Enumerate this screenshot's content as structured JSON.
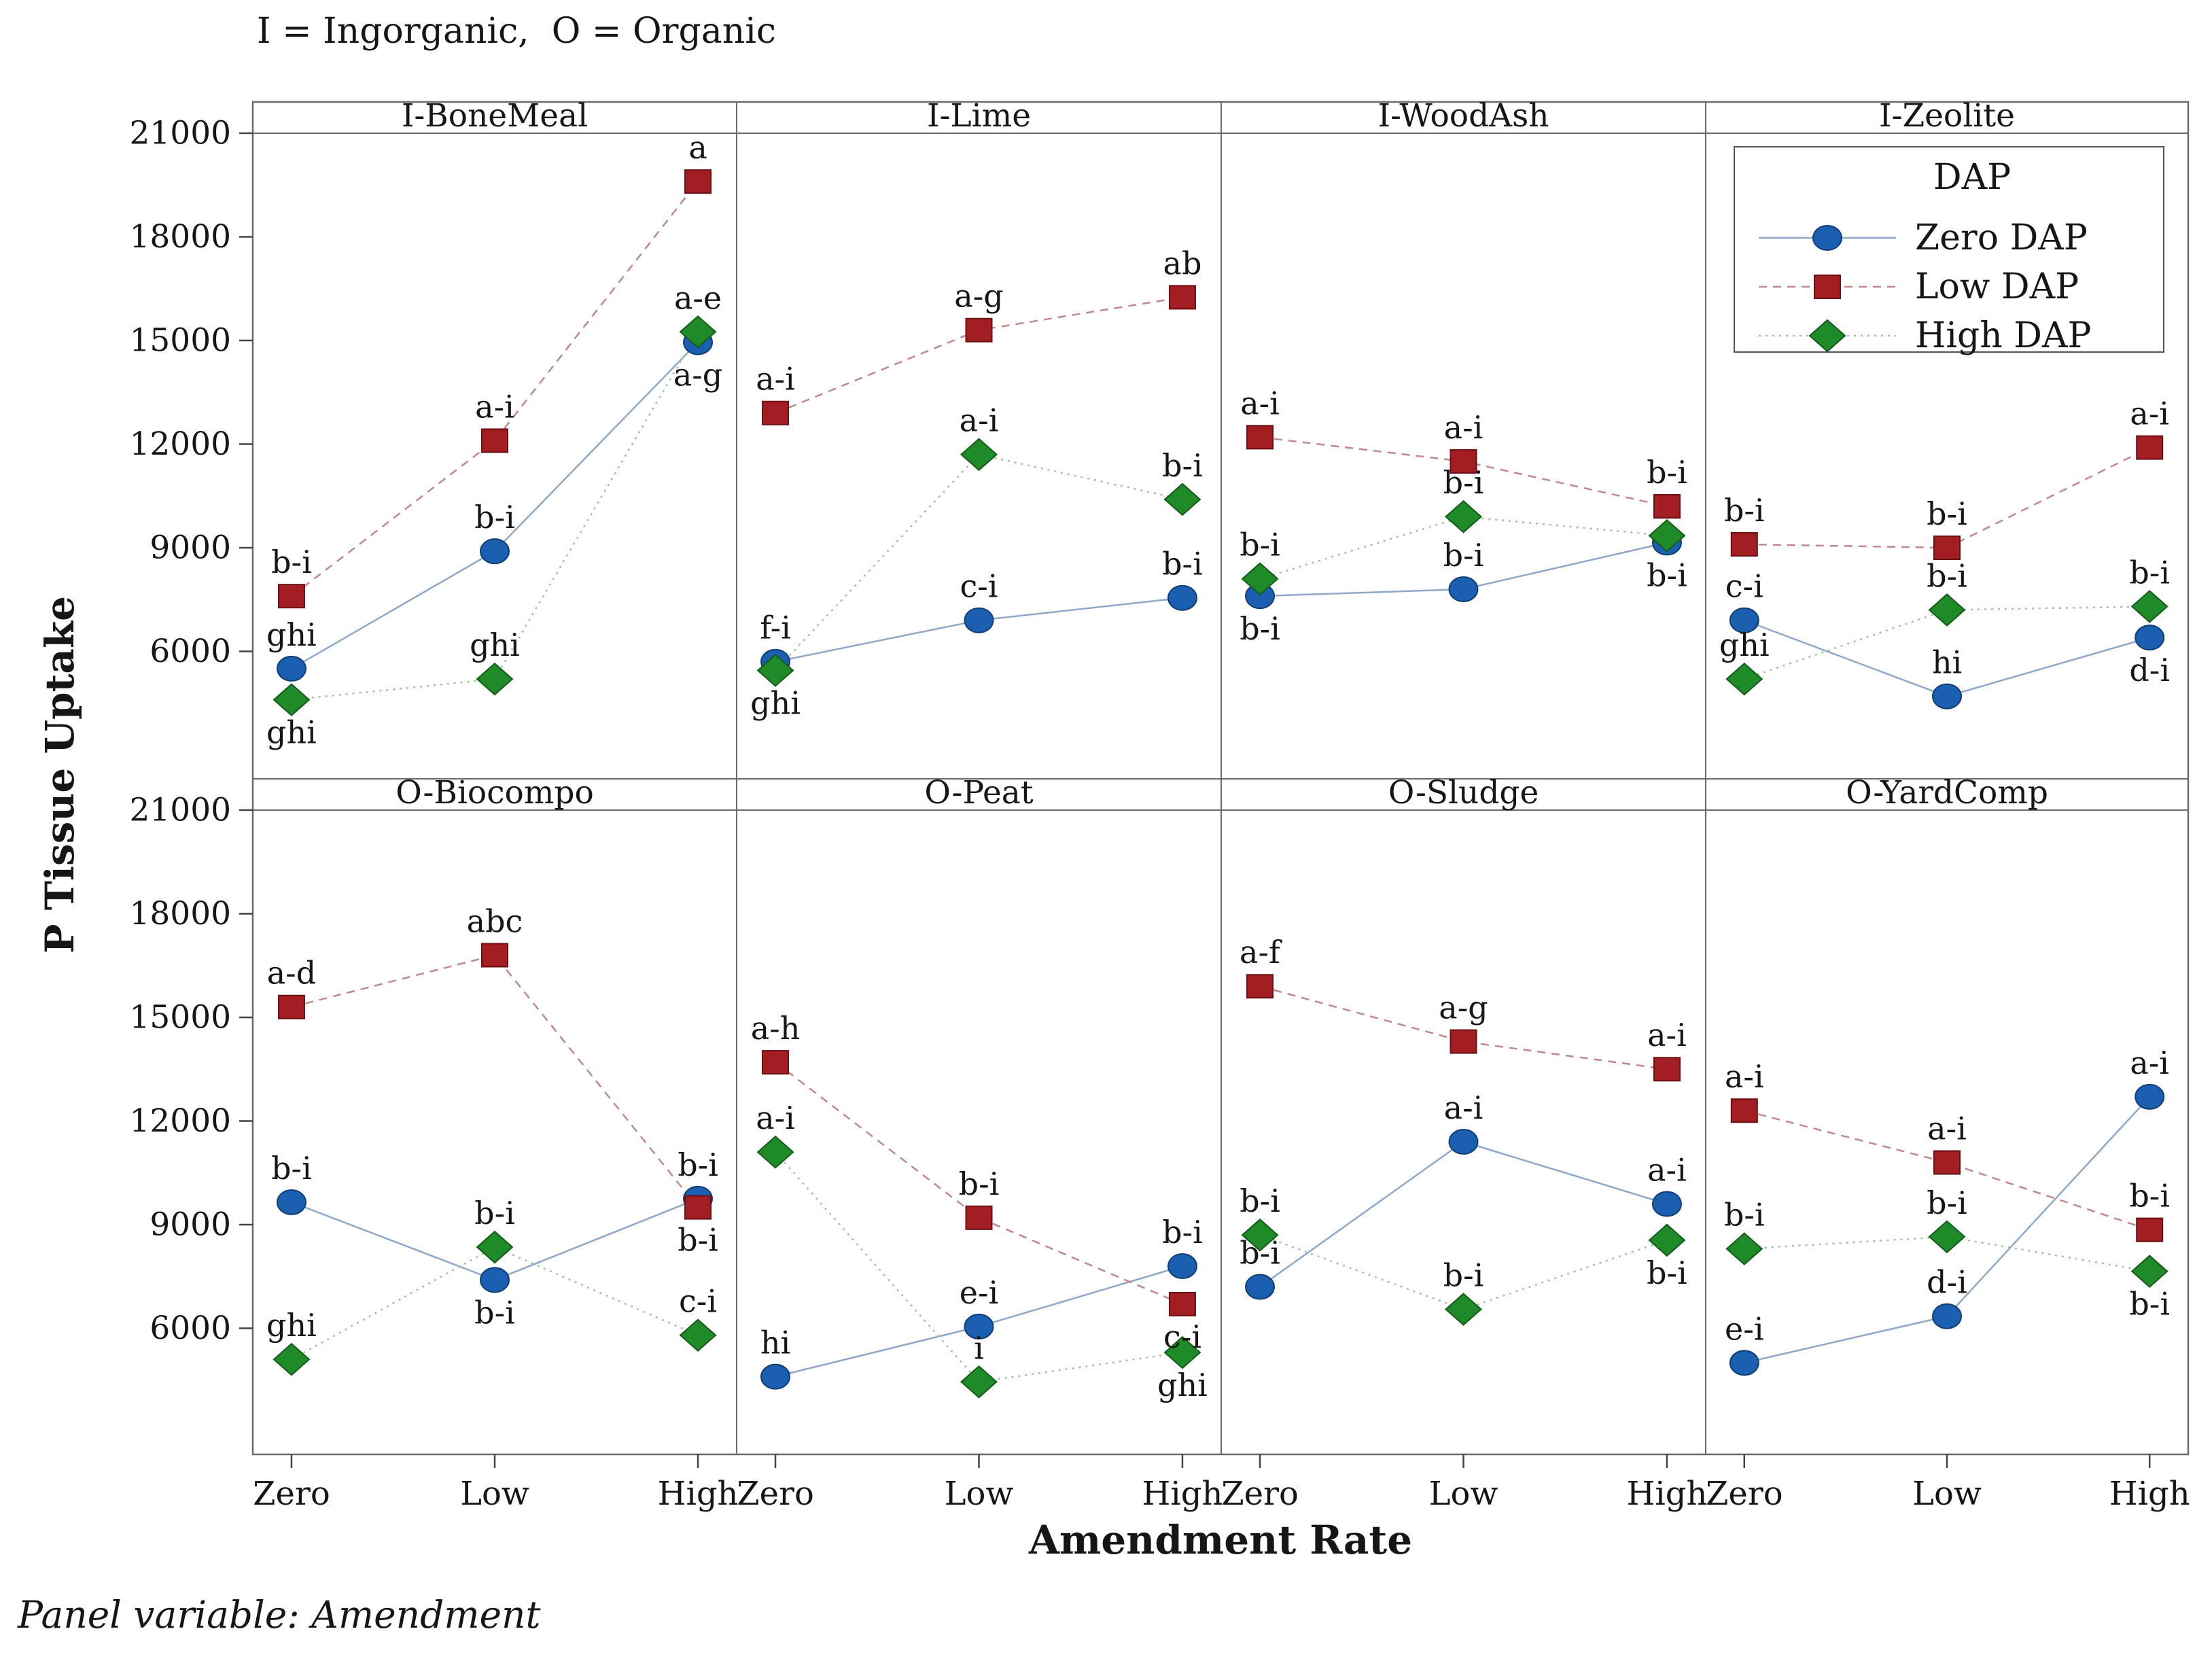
{
  "chart_data": {
    "type": "line",
    "title": "I = Ingorganic,  O = Organic",
    "xlabel": "Amendment Rate",
    "ylabel": "P Tissue Uptake",
    "footnote": "Panel variable: Amendment",
    "x_categories": [
      "Zero",
      "Low",
      "High"
    ],
    "y_ticks": [
      21000,
      18000,
      15000,
      12000,
      9000,
      6000
    ],
    "ylim": [
      2300,
      21500
    ],
    "grid": "off",
    "legend": {
      "title": "DAP",
      "position": "inside I-Zeolite panel, top"
    },
    "series_meta": [
      {
        "name": "Zero DAP",
        "marker": "circle",
        "marker_color": "#1a5fb0",
        "marker_edge": "#103e74",
        "line_style": "solid",
        "line_color": "#8fa8c8"
      },
      {
        "name": "Low DAP",
        "marker": "square",
        "marker_color": "#a31e23",
        "marker_edge": "#6d1013",
        "line_style": "dashed",
        "line_color": "#c08989"
      },
      {
        "name": "High DAP",
        "marker": "diamond",
        "marker_color": "#1f8b28",
        "marker_edge": "#135c1a",
        "line_style": "dotted",
        "line_color": "#9cc49c"
      }
    ],
    "panels": [
      {
        "name": "I-BoneMeal",
        "row": 0,
        "col": 0,
        "series": [
          {
            "name": "Zero DAP",
            "values": [
              5500,
              8900,
              14950
            ],
            "labels": [
              "ghi",
              "b-i",
              "a-g"
            ],
            "label_pos": [
              "above",
              "above",
              "below"
            ]
          },
          {
            "name": "Low DAP",
            "values": [
              7600,
              12100,
              19600
            ],
            "labels": [
              "b-i",
              "a-i",
              "a"
            ],
            "label_pos": [
              "above",
              "above",
              "above"
            ]
          },
          {
            "name": "High DAP",
            "values": [
              4600,
              5200,
              15250
            ],
            "labels": [
              "ghi",
              "ghi",
              "a-e"
            ],
            "label_pos": [
              "below",
              "above",
              "above"
            ]
          }
        ]
      },
      {
        "name": "I-Lime",
        "row": 0,
        "col": 1,
        "series": [
          {
            "name": "Zero DAP",
            "values": [
              5700,
              6900,
              7550
            ],
            "labels": [
              "f-i",
              "c-i",
              "b-i"
            ],
            "label_pos": [
              "above",
              "above",
              "above"
            ]
          },
          {
            "name": "Low DAP",
            "values": [
              12900,
              15300,
              16250
            ],
            "labels": [
              "a-i",
              "a-g",
              "ab"
            ],
            "label_pos": [
              "above",
              "above",
              "above"
            ]
          },
          {
            "name": "High DAP",
            "values": [
              5450,
              11700,
              10400
            ],
            "labels": [
              "ghi",
              "a-i",
              "b-i"
            ],
            "label_pos": [
              "below",
              "above",
              "above"
            ]
          }
        ]
      },
      {
        "name": "I-WoodAsh",
        "row": 0,
        "col": 2,
        "series": [
          {
            "name": "Zero DAP",
            "values": [
              7600,
              7800,
              9150
            ],
            "labels": [
              "b-i",
              "b-i",
              "b-i"
            ],
            "label_pos": [
              "below",
              "above",
              "below"
            ]
          },
          {
            "name": "Low DAP",
            "values": [
              12200,
              11500,
              10200
            ],
            "labels": [
              "a-i",
              "a-i",
              "b-i"
            ],
            "label_pos": [
              "above",
              "above",
              "above"
            ]
          },
          {
            "name": "High DAP",
            "values": [
              8100,
              9900,
              9350
            ],
            "labels": [
              "b-i",
              "b-i",
              ""
            ],
            "label_pos": [
              "above",
              "above",
              "above"
            ]
          }
        ]
      },
      {
        "name": "I-Zeolite",
        "row": 0,
        "col": 3,
        "series": [
          {
            "name": "Zero DAP",
            "values": [
              6900,
              4700,
              6400
            ],
            "labels": [
              "c-i",
              "hi",
              "d-i"
            ],
            "label_pos": [
              "above",
              "above",
              "below"
            ]
          },
          {
            "name": "Low DAP",
            "values": [
              9100,
              9000,
              11900
            ],
            "labels": [
              "b-i",
              "b-i",
              "a-i"
            ],
            "label_pos": [
              "above",
              "above",
              "above"
            ]
          },
          {
            "name": "High DAP",
            "values": [
              5200,
              7200,
              7300
            ],
            "labels": [
              "ghi",
              "b-i",
              "b-i"
            ],
            "label_pos": [
              "above",
              "above",
              "above"
            ]
          }
        ]
      },
      {
        "name": "O-Biocompo",
        "row": 1,
        "col": 0,
        "series": [
          {
            "name": "Zero DAP",
            "values": [
              9650,
              7400,
              9750
            ],
            "labels": [
              "b-i",
              "b-i",
              "b-i"
            ],
            "label_pos": [
              "above",
              "below",
              "above"
            ]
          },
          {
            "name": "Low DAP",
            "values": [
              15300,
              16800,
              9500
            ],
            "labels": [
              "a-d",
              "abc",
              "b-i"
            ],
            "label_pos": [
              "above",
              "above",
              "below"
            ]
          },
          {
            "name": "High DAP",
            "values": [
              5100,
              8350,
              5800
            ],
            "labels": [
              "ghi",
              "b-i",
              "c-i"
            ],
            "label_pos": [
              "above",
              "above",
              "above"
            ]
          }
        ]
      },
      {
        "name": "O-Peat",
        "row": 1,
        "col": 1,
        "series": [
          {
            "name": "Zero DAP",
            "values": [
              4600,
              6050,
              7800
            ],
            "labels": [
              "hi",
              "e-i",
              "b-i"
            ],
            "label_pos": [
              "above",
              "above",
              "above"
            ]
          },
          {
            "name": "Low DAP",
            "values": [
              13700,
              9200,
              6700
            ],
            "labels": [
              "a-h",
              "b-i",
              "c-i"
            ],
            "label_pos": [
              "above",
              "above",
              "below"
            ]
          },
          {
            "name": "High DAP",
            "values": [
              11100,
              4450,
              5300
            ],
            "labels": [
              "a-i",
              "i",
              "ghi"
            ],
            "label_pos": [
              "above",
              "above",
              "below"
            ]
          }
        ]
      },
      {
        "name": "O-Sludge",
        "row": 1,
        "col": 2,
        "series": [
          {
            "name": "Zero DAP",
            "values": [
              7200,
              11400,
              9600
            ],
            "labels": [
              "b-i",
              "a-i",
              "a-i"
            ],
            "label_pos": [
              "above",
              "above",
              "above"
            ]
          },
          {
            "name": "Low DAP",
            "values": [
              15900,
              14300,
              13500
            ],
            "labels": [
              "a-f",
              "a-g",
              "a-i"
            ],
            "label_pos": [
              "above",
              "above",
              "above"
            ]
          },
          {
            "name": "High DAP",
            "values": [
              8700,
              6550,
              8550
            ],
            "labels": [
              "b-i",
              "b-i",
              "b-i"
            ],
            "label_pos": [
              "above",
              "above",
              "below"
            ]
          }
        ]
      },
      {
        "name": "O-YardComp",
        "row": 1,
        "col": 3,
        "series": [
          {
            "name": "Zero DAP",
            "values": [
              5000,
              6350,
              12700
            ],
            "labels": [
              "e-i",
              "d-i",
              "a-i"
            ],
            "label_pos": [
              "above",
              "above",
              "above"
            ]
          },
          {
            "name": "Low DAP",
            "values": [
              12300,
              10800,
              8850
            ],
            "labels": [
              "a-i",
              "a-i",
              "b-i"
            ],
            "label_pos": [
              "above",
              "above",
              "above"
            ]
          },
          {
            "name": "High DAP",
            "values": [
              8300,
              8650,
              7650
            ],
            "labels": [
              "b-i",
              "b-i",
              "b-i"
            ],
            "label_pos": [
              "above",
              "above",
              "below"
            ]
          }
        ]
      }
    ]
  }
}
